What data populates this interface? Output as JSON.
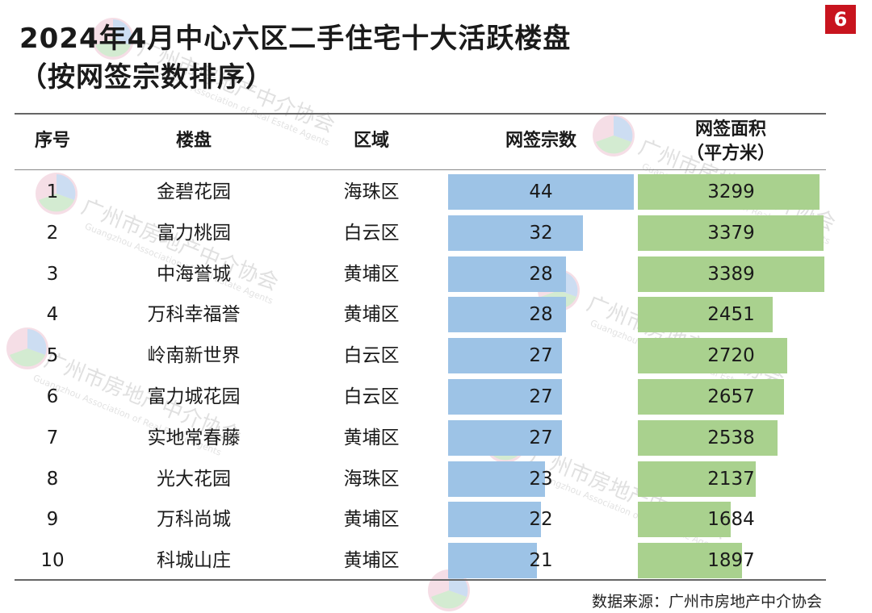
{
  "title_line1": "2024年4月中心六区二手住宅十大活跃楼盘",
  "title_line2": "（按网签宗数排序）",
  "page_number": "6",
  "source": "数据来源：广州市房地产中介协会",
  "watermark": {
    "text": "广州市房地产中介协会",
    "sub": "Guangzhou Association of Real Estate Agents"
  },
  "columns": {
    "rank": "序号",
    "project": "楼盘",
    "district": "区域",
    "count": "网签宗数",
    "area_line1": "网签面积",
    "area_line2": "（平方米）"
  },
  "colors": {
    "count_bar": "#9dc3e6",
    "area_bar": "#a9d18e",
    "badge": "#c8141e"
  },
  "chart_data": {
    "type": "table",
    "rows": [
      {
        "rank": "1",
        "project": "金碧花园",
        "district": "海珠区",
        "count": 44,
        "area": 3299
      },
      {
        "rank": "2",
        "project": "富力桃园",
        "district": "白云区",
        "count": 32,
        "area": 3379
      },
      {
        "rank": "3",
        "project": "中海誉城",
        "district": "黄埔区",
        "count": 28,
        "area": 3389
      },
      {
        "rank": "4",
        "project": "万科幸福誉",
        "district": "黄埔区",
        "count": 28,
        "area": 2451
      },
      {
        "rank": "5",
        "project": "岭南新世界",
        "district": "白云区",
        "count": 27,
        "area": 2720
      },
      {
        "rank": "6",
        "project": "富力城花园",
        "district": "白云区",
        "count": 27,
        "area": 2657
      },
      {
        "rank": "7",
        "project": "实地常春藤",
        "district": "黄埔区",
        "count": 27,
        "area": 2538
      },
      {
        "rank": "8",
        "project": "光大花园",
        "district": "海珠区",
        "count": 23,
        "area": 2137
      },
      {
        "rank": "9",
        "project": "万科尚城",
        "district": "黄埔区",
        "count": 22,
        "area": 1684
      },
      {
        "rank": "10",
        "project": "科城山庄",
        "district": "黄埔区",
        "count": 21,
        "area": 1897
      }
    ]
  }
}
